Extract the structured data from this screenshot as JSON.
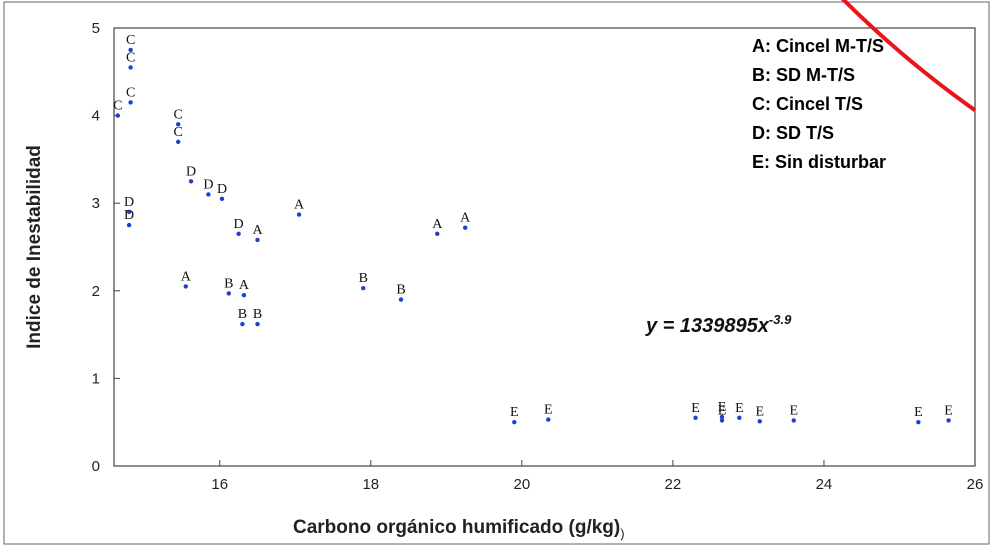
{
  "chart_data": {
    "type": "scatter",
    "title": "",
    "xlabel": "Carbono orgánico humificado (g/kg)",
    "xlabel_suffix": ")",
    "ylabel": "Indice de Inestabilidad",
    "xlim": [
      14.6,
      26
    ],
    "ylim": [
      0,
      5
    ],
    "xticks": [
      "16",
      "18",
      "20",
      "22",
      "24",
      "26"
    ],
    "yticks": [
      "0",
      "1",
      "2",
      "3",
      "4",
      "5"
    ],
    "grid": false,
    "legend_position": "top-right",
    "colors": {
      "points": "#1f3fcf",
      "fit": "#e8151b",
      "frame": "#444444"
    },
    "legend": [
      {
        "key": "A",
        "text": "A: Cincel M-T/S"
      },
      {
        "key": "B",
        "text": "B: SD      M-T/S"
      },
      {
        "key": "C",
        "text": "C: Cincel   T/S"
      },
      {
        "key": "D",
        "text": "D: SD         T/S"
      },
      {
        "key": "E",
        "text": "E: Sin disturbar"
      }
    ],
    "equation": {
      "lhs": "y = 1339895x",
      "exponent": "-3.9"
    },
    "fit": {
      "a": 1339895,
      "b": -3.9,
      "x_range": [
        14.6,
        26
      ]
    },
    "points": [
      {
        "label": "C",
        "x": 14.82,
        "y": 4.75
      },
      {
        "label": "C",
        "x": 14.82,
        "y": 4.55
      },
      {
        "label": "C",
        "x": 14.82,
        "y": 4.15
      },
      {
        "label": "C",
        "x": 14.65,
        "y": 4.0
      },
      {
        "label": "C",
        "x": 15.45,
        "y": 3.9
      },
      {
        "label": "C",
        "x": 15.45,
        "y": 3.7
      },
      {
        "label": "D",
        "x": 14.8,
        "y": 2.9
      },
      {
        "label": "D",
        "x": 14.8,
        "y": 2.75
      },
      {
        "label": "D",
        "x": 15.62,
        "y": 3.25
      },
      {
        "label": "D",
        "x": 15.85,
        "y": 3.1
      },
      {
        "label": "D",
        "x": 16.03,
        "y": 3.05
      },
      {
        "label": "D",
        "x": 16.25,
        "y": 2.65
      },
      {
        "label": "A",
        "x": 16.5,
        "y": 2.58
      },
      {
        "label": "A",
        "x": 17.05,
        "y": 2.87
      },
      {
        "label": "A",
        "x": 15.55,
        "y": 2.05
      },
      {
        "label": "A",
        "x": 18.88,
        "y": 2.65
      },
      {
        "label": "A",
        "x": 19.25,
        "y": 2.72
      },
      {
        "label": "A",
        "x": 16.32,
        "y": 1.95
      },
      {
        "label": "B",
        "x": 16.12,
        "y": 1.97
      },
      {
        "label": "B",
        "x": 16.3,
        "y": 1.62
      },
      {
        "label": "B",
        "x": 16.5,
        "y": 1.62
      },
      {
        "label": "B",
        "x": 17.9,
        "y": 2.03
      },
      {
        "label": "B",
        "x": 18.4,
        "y": 1.9
      },
      {
        "label": "E",
        "x": 19.9,
        "y": 0.5
      },
      {
        "label": "E",
        "x": 20.35,
        "y": 0.53
      },
      {
        "label": "E",
        "x": 22.3,
        "y": 0.55
      },
      {
        "label": "E",
        "x": 22.65,
        "y": 0.56
      },
      {
        "label": "E",
        "x": 22.65,
        "y": 0.52
      },
      {
        "label": "E",
        "x": 22.88,
        "y": 0.55
      },
      {
        "label": "E",
        "x": 23.15,
        "y": 0.51
      },
      {
        "label": "E",
        "x": 23.6,
        "y": 0.52
      },
      {
        "label": "E",
        "x": 25.25,
        "y": 0.5
      },
      {
        "label": "E",
        "x": 25.65,
        "y": 0.52
      }
    ]
  }
}
